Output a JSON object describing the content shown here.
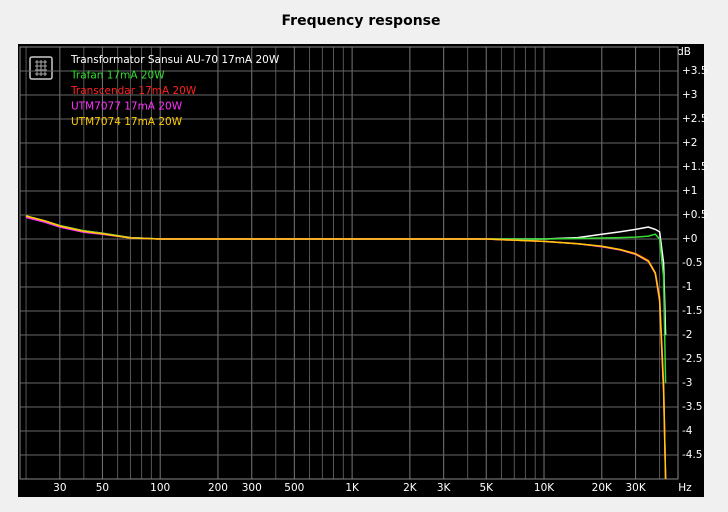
{
  "chart_data": {
    "type": "line",
    "title": "Frequency response",
    "y_unit": "dB",
    "x_unit": "Hz",
    "xscale": "log",
    "grid": true,
    "xlim": [
      18.6,
      49900
    ],
    "ylim": [
      -5,
      4
    ],
    "xticks": [
      30,
      50,
      100,
      200,
      300,
      500,
      {
        "value": 1000,
        "label": "1K"
      },
      {
        "value": 2000,
        "label": "2K"
      },
      {
        "value": 3000,
        "label": "3K"
      },
      {
        "value": 5000,
        "label": "5K"
      },
      {
        "value": 10000,
        "label": "10K"
      },
      {
        "value": 20000,
        "label": "20K"
      },
      {
        "value": 30000,
        "label": "30K"
      }
    ],
    "xminorticks": [
      20,
      40,
      60,
      70,
      80,
      90,
      400,
      600,
      700,
      800,
      900,
      4000,
      6000,
      7000,
      8000,
      9000,
      40000
    ],
    "yticks": [
      -4.5,
      -4,
      -3.5,
      -3,
      -2.5,
      -2,
      -1.5,
      -1,
      -0.5,
      {
        "value": 0,
        "label": "+0"
      },
      {
        "value": 0.5,
        "label": "+0.5"
      },
      {
        "value": 1,
        "label": "+1"
      },
      {
        "value": 1.5,
        "label": "+1.5"
      },
      {
        "value": 2,
        "label": "+2"
      },
      {
        "value": 2.5,
        "label": "+2.5"
      },
      {
        "value": 3,
        "label": "+3"
      },
      {
        "value": 3.5,
        "label": "+3.5"
      }
    ],
    "x": [
      20,
      25,
      30,
      40,
      50,
      70,
      100,
      1000,
      5000,
      10000,
      15000,
      20000,
      25000,
      30000,
      35000,
      38000,
      40000,
      42000,
      43000
    ],
    "series": [
      {
        "name": "Transformator Sansui AU-70 17mA 20W",
        "color": "#ffffff",
        "values": [
          0.48,
          0.38,
          0.28,
          0.17,
          0.12,
          0.03,
          0,
          0,
          0,
          0,
          0.03,
          0.1,
          0.15,
          0.2,
          0.25,
          0.2,
          0.15,
          -0.5,
          -2
        ]
      },
      {
        "name": "Trafan 17mA 20W",
        "color": "#33dd33",
        "values": [
          0.48,
          0.38,
          0.28,
          0.17,
          0.12,
          0.03,
          0,
          0,
          0,
          0,
          0.01,
          0.02,
          0.03,
          0.04,
          0.06,
          0.1,
          0,
          -0.8,
          -3
        ]
      },
      {
        "name": "Transcendar 17mA 20W",
        "color": "#ff2020",
        "values": [
          0.47,
          0.37,
          0.27,
          0.16,
          0.11,
          0.02,
          0,
          0,
          0,
          -0.05,
          -0.1,
          -0.15,
          -0.22,
          -0.3,
          -0.45,
          -0.7,
          -1.2,
          -3,
          -5
        ]
      },
      {
        "name": "UTM7077 17mA 20W",
        "color": "#ff33ff",
        "values": [
          0.45,
          0.35,
          0.25,
          0.14,
          0.1,
          0.02,
          0,
          0,
          0,
          -0.05,
          -0.1,
          -0.16,
          -0.23,
          -0.32,
          -0.47,
          -0.72,
          -1.3,
          -3.2,
          -5
        ]
      },
      {
        "name": "UTM7074 17mA 20W",
        "color": "#ffcc00",
        "values": [
          0.48,
          0.38,
          0.27,
          0.16,
          0.11,
          0.02,
          0,
          0,
          0,
          -0.05,
          -0.1,
          -0.15,
          -0.22,
          -0.31,
          -0.46,
          -0.71,
          -1.25,
          -3.1,
          -5
        ]
      }
    ]
  }
}
